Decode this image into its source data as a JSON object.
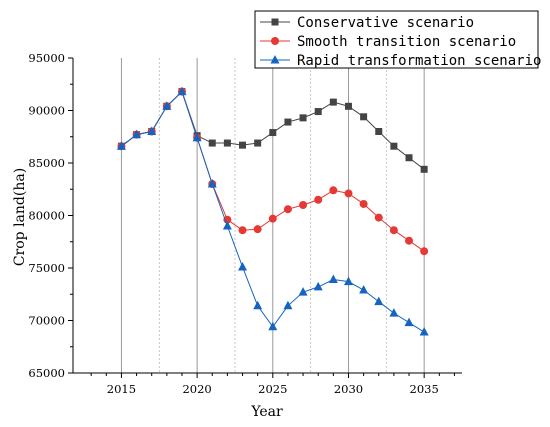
{
  "chart_data": {
    "type": "line",
    "title": "",
    "xlabel": "Year",
    "ylabel": "Crop land(ha)",
    "xlim": [
      2011.8,
      2037.5
    ],
    "ylim": [
      65000,
      95000
    ],
    "x_ticks": [
      2015,
      2020,
      2025,
      2030,
      2035
    ],
    "y_ticks": [
      65000,
      70000,
      75000,
      80000,
      85000,
      90000,
      95000
    ],
    "grid": "vertical dashed",
    "legend": "top-right",
    "x": [
      2015,
      2016,
      2017,
      2018,
      2019,
      2020,
      2021,
      2022,
      2023,
      2024,
      2025,
      2026,
      2027,
      2028,
      2029,
      2030,
      2031,
      2032,
      2033,
      2034,
      2035
    ],
    "series": [
      {
        "name": "Conservative scenario",
        "marker": "square",
        "color": "#444444",
        "values": [
          86600,
          87700,
          88000,
          90400,
          91800,
          87600,
          86900,
          86900,
          86700,
          86900,
          87900,
          88900,
          89300,
          89900,
          90800,
          90400,
          89400,
          88000,
          86600,
          85500,
          84400
        ]
      },
      {
        "name": "Smooth transition scenario",
        "marker": "circle",
        "color": "#e53935",
        "values": [
          86600,
          87700,
          88000,
          90400,
          91800,
          87400,
          83000,
          79600,
          78600,
          78700,
          79700,
          80600,
          81000,
          81500,
          82400,
          82100,
          81100,
          79800,
          78600,
          77600,
          76600
        ]
      },
      {
        "name": "Rapid transformation scenario",
        "marker": "triangle",
        "color": "#1565c0",
        "values": [
          86600,
          87700,
          88000,
          90400,
          91800,
          87400,
          83000,
          79000,
          75100,
          71400,
          69400,
          71400,
          72700,
          73200,
          73900,
          73700,
          72900,
          71800,
          70700,
          69800,
          68900
        ]
      }
    ]
  }
}
